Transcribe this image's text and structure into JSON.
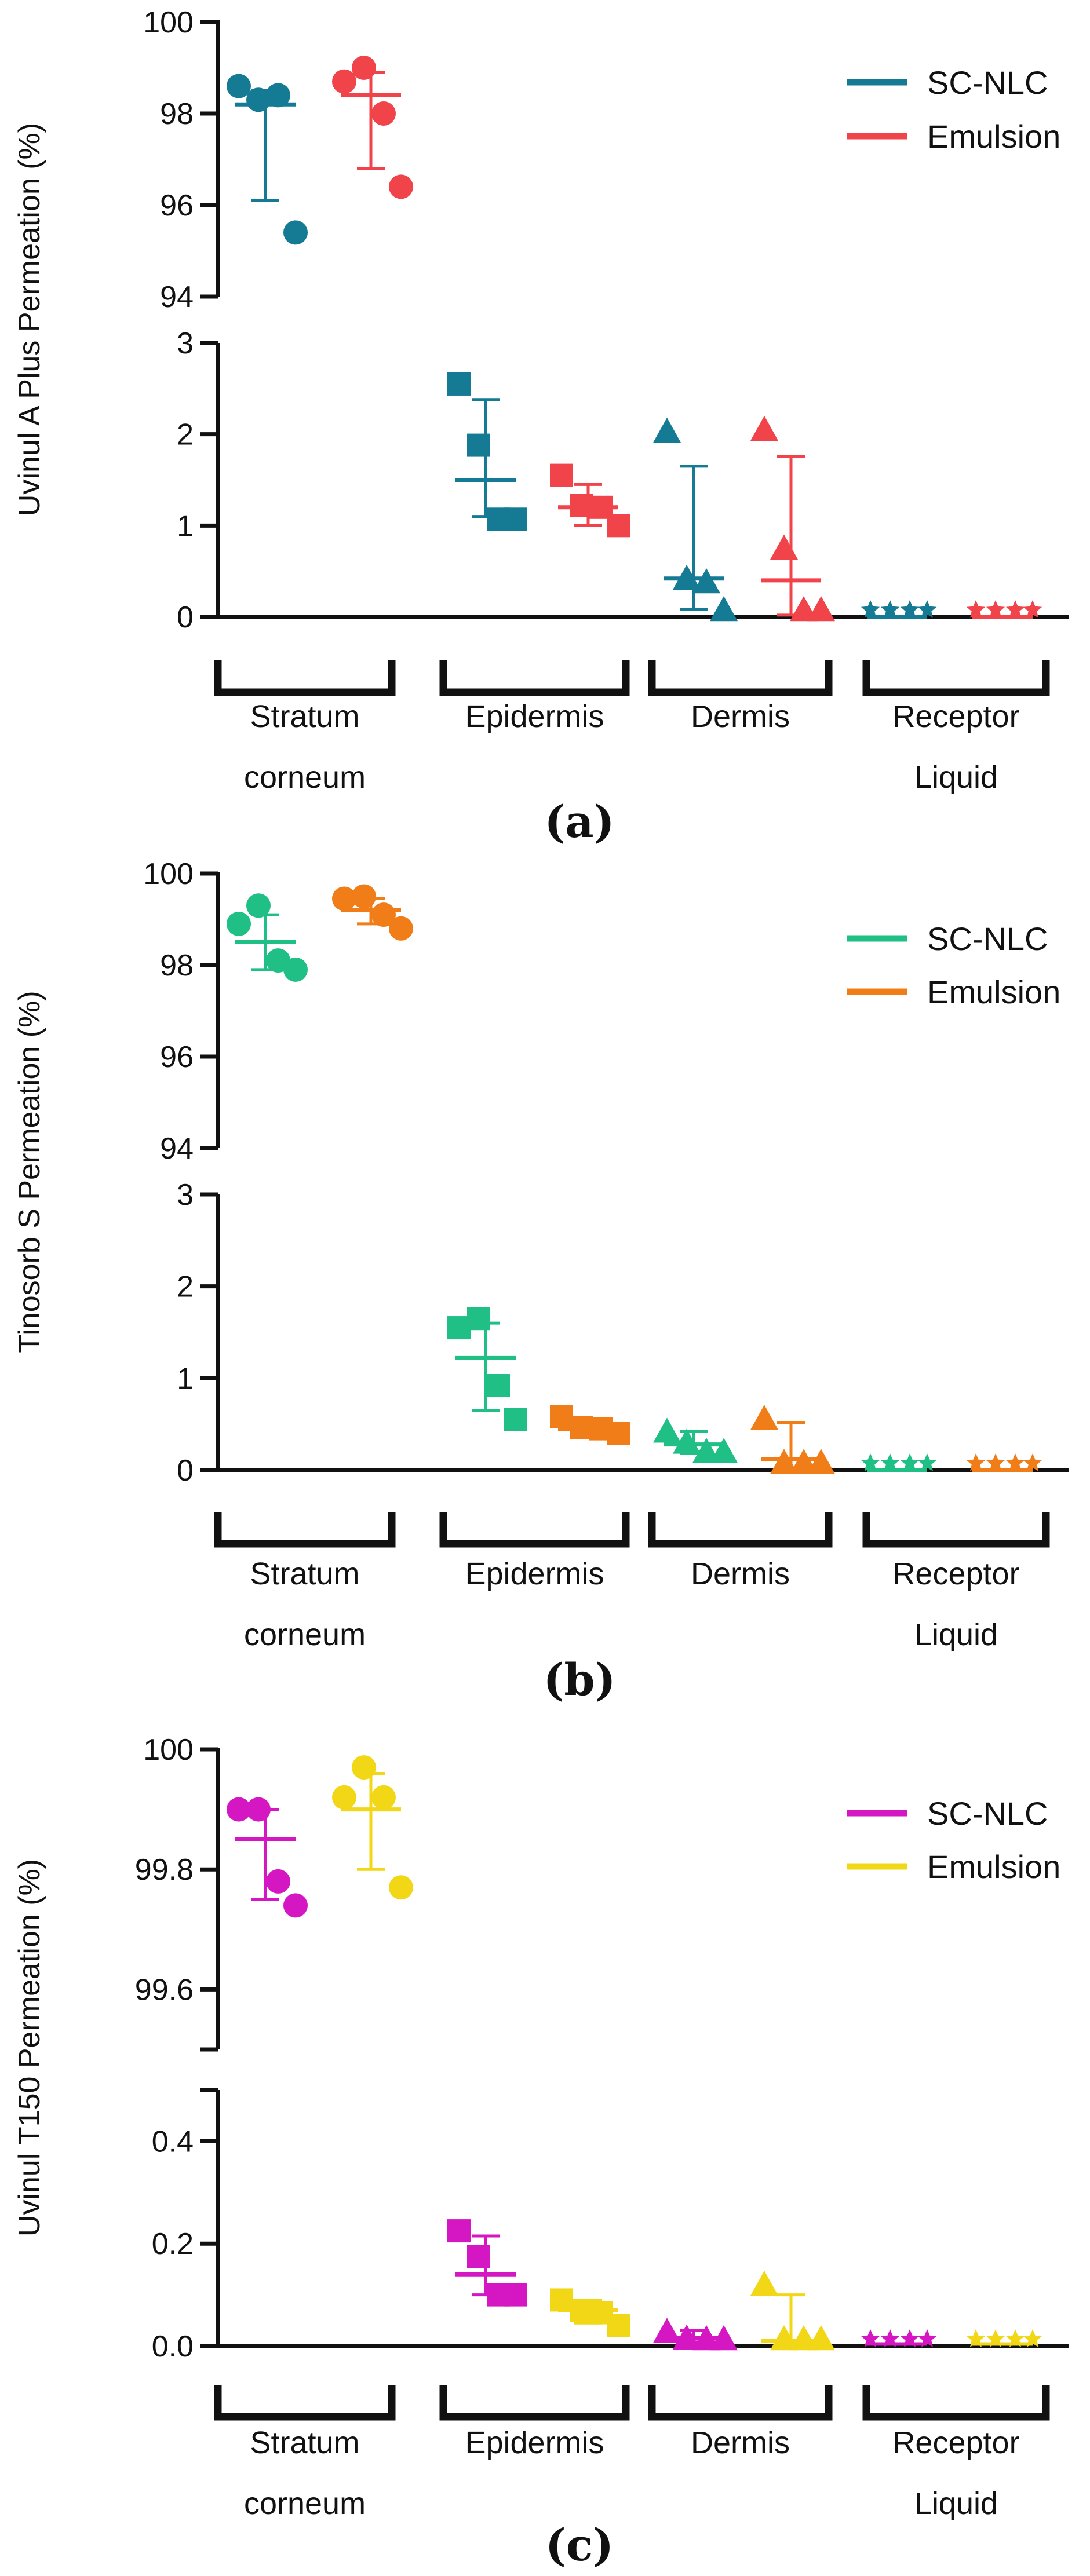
{
  "chart_data": [
    {
      "type": "scatter",
      "panel_label": "(a)",
      "ylabel": "Uvinul A Plus Permeation (%)",
      "groups": [
        {
          "label": [
            "Stratum",
            "corneum"
          ]
        },
        {
          "label": [
            "Epidermis"
          ]
        },
        {
          "label": [
            "Dermis"
          ]
        },
        {
          "label": [
            "Receptor",
            "Liquid"
          ]
        }
      ],
      "upper_axis": {
        "range": [
          94,
          100
        ],
        "ticks": [
          94,
          96,
          98,
          100
        ],
        "tick_labels": [
          "94",
          "96",
          "98",
          "100"
        ]
      },
      "lower_axis": {
        "range": [
          0,
          3
        ],
        "ticks": [
          0,
          1,
          2,
          3
        ],
        "tick_labels": [
          "0",
          "1",
          "2",
          "3"
        ]
      },
      "series": [
        {
          "name": "SC-NLC",
          "color": "#157a94",
          "groups": [
            {
              "points": [
                98.6,
                98.3,
                98.4,
                95.4
              ],
              "mean": 98.2,
              "err": [
                96.1,
                98.5
              ]
            },
            {
              "points": [
                2.55,
                1.88,
                1.07,
                1.07
              ],
              "mean": 1.5,
              "err": [
                1.1,
                2.38
              ]
            },
            {
              "points": [
                2.03,
                0.42,
                0.38,
                0.02
              ],
              "mean": 0.42,
              "err": [
                0.08,
                1.65
              ]
            },
            {
              "points": [
                0.0,
                0.0,
                0.0,
                0.0
              ],
              "mean": 0.0,
              "err": [
                0.0,
                0.0
              ]
            }
          ]
        },
        {
          "name": "Emulsion",
          "color": "#f0434a",
          "groups": [
            {
              "points": [
                98.7,
                99.0,
                98.0,
                96.4
              ],
              "mean": 98.4,
              "err": [
                96.8,
                98.9
              ]
            },
            {
              "points": [
                1.55,
                1.22,
                1.2,
                1.0
              ],
              "mean": 1.2,
              "err": [
                1.0,
                1.45
              ]
            },
            {
              "points": [
                2.05,
                0.75,
                0.02,
                0.02
              ],
              "mean": 0.4,
              "err": [
                0.02,
                1.76
              ]
            },
            {
              "points": [
                0.0,
                0.0,
                0.0,
                0.0
              ],
              "mean": 0.0,
              "err": [
                0.0,
                0.0
              ]
            }
          ]
        }
      ]
    },
    {
      "type": "scatter",
      "panel_label": "(b)",
      "ylabel": "Tinosorb S Permeation (%)",
      "groups": [
        {
          "label": [
            "Stratum",
            "corneum"
          ]
        },
        {
          "label": [
            "Epidermis"
          ]
        },
        {
          "label": [
            "Dermis"
          ]
        },
        {
          "label": [
            "Receptor",
            "Liquid"
          ]
        }
      ],
      "upper_axis": {
        "range": [
          94,
          100
        ],
        "ticks": [
          94,
          96,
          98,
          100
        ],
        "tick_labels": [
          "94",
          "96",
          "98",
          "100"
        ]
      },
      "lower_axis": {
        "range": [
          0,
          3
        ],
        "ticks": [
          0,
          1,
          2,
          3
        ],
        "tick_labels": [
          "0",
          "1",
          "2",
          "3"
        ]
      },
      "series": [
        {
          "name": "SC-NLC",
          "color": "#1fbf86",
          "groups": [
            {
              "points": [
                98.9,
                99.3,
                98.1,
                97.9
              ],
              "mean": 98.5,
              "err": [
                97.9,
                99.1
              ]
            },
            {
              "points": [
                1.55,
                1.65,
                0.92,
                0.55
              ],
              "mean": 1.22,
              "err": [
                0.65,
                1.6
              ]
            },
            {
              "points": [
                0.42,
                0.3,
                0.2,
                0.2
              ],
              "mean": 0.28,
              "err": [
                0.18,
                0.42
              ]
            },
            {
              "points": [
                0.0,
                0.0,
                0.0,
                0.0
              ],
              "mean": 0.0,
              "err": [
                0.0,
                0.0
              ]
            }
          ]
        },
        {
          "name": "Emulsion",
          "color": "#f07d17",
          "groups": [
            {
              "points": [
                99.45,
                99.5,
                99.1,
                98.8
              ],
              "mean": 99.2,
              "err": [
                98.9,
                99.45
              ]
            },
            {
              "points": [
                0.58,
                0.46,
                0.45,
                0.4
              ],
              "mean": 0.45,
              "err": [
                0.4,
                0.52
              ]
            },
            {
              "points": [
                0.56,
                0.08,
                0.08,
                0.08
              ],
              "mean": 0.12,
              "err": [
                0.02,
                0.52
              ]
            },
            {
              "points": [
                0.0,
                0.0,
                0.0,
                0.0
              ],
              "mean": 0.0,
              "err": [
                0.0,
                0.0
              ]
            }
          ]
        }
      ]
    },
    {
      "type": "scatter",
      "panel_label": "(c)",
      "ylabel": "Uvinul T150 Permeation (%)",
      "groups": [
        {
          "label": [
            "Stratum",
            "corneum"
          ]
        },
        {
          "label": [
            "Epidermis"
          ]
        },
        {
          "label": [
            "Dermis"
          ]
        },
        {
          "label": [
            "Receptor",
            "Liquid"
          ]
        }
      ],
      "upper_axis": {
        "range": [
          99.5,
          100
        ],
        "ticks": [
          99.6,
          99.8,
          100
        ],
        "tick_labels": [
          "99.6",
          "99.8",
          "100"
        ]
      },
      "lower_axis": {
        "range": [
          0,
          0.5
        ],
        "ticks": [
          0.0,
          0.2,
          0.4
        ],
        "tick_labels": [
          "0.0",
          "0.2",
          "0.4"
        ]
      },
      "series": [
        {
          "name": "SC-NLC",
          "color": "#d417c2",
          "groups": [
            {
              "points": [
                99.9,
                99.9,
                99.78,
                99.74
              ],
              "mean": 99.85,
              "err": [
                99.75,
                99.9
              ]
            },
            {
              "points": [
                0.225,
                0.175,
                0.1,
                0.1
              ],
              "mean": 0.14,
              "err": [
                0.1,
                0.215
              ]
            },
            {
              "points": [
                0.028,
                0.015,
                0.012,
                0.012
              ],
              "mean": 0.016,
              "err": [
                0.008,
                0.03
              ]
            },
            {
              "points": [
                0.005,
                0.005,
                0.004,
                0.004
              ],
              "mean": 0.004,
              "err": [
                0.0,
                0.0
              ]
            }
          ]
        },
        {
          "name": "Emulsion",
          "color": "#f2d716",
          "groups": [
            {
              "points": [
                99.92,
                99.97,
                99.92,
                99.77
              ],
              "mean": 99.9,
              "err": [
                99.8,
                99.96
              ]
            },
            {
              "points": [
                0.09,
                0.07,
                0.065,
                0.04
              ],
              "mean": 0.07,
              "err": [
                0.045,
                0.09
              ]
            },
            {
              "points": [
                0.12,
                0.004,
                0.004,
                0.004
              ],
              "mean": 0.01,
              "err": [
                0.0,
                0.1
              ]
            },
            {
              "points": [
                0.004,
                0.004,
                0.004,
                0.004
              ],
              "mean": 0.004,
              "err": [
                0.0,
                0.0
              ]
            }
          ]
        }
      ]
    }
  ]
}
